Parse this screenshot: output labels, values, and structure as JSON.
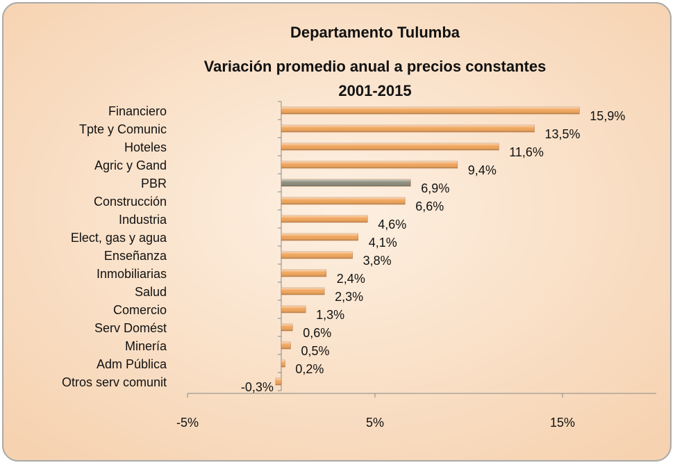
{
  "chart_data": {
    "type": "hbar",
    "title": [
      "Departamento Tulumba",
      "Variación promedio anual a precios constantes",
      "2001-2015"
    ],
    "categories": [
      "Financiero",
      "Tpte y Comunic",
      "Hoteles",
      "Agric y Gand",
      "PBR",
      "Construcción",
      "Industria",
      "Elect, gas y agua",
      "Enseñanza",
      "Inmobiliarias",
      "Salud",
      "Comercio",
      "Serv Domést",
      "Minería",
      "Adm Pública",
      "Otros serv comunit"
    ],
    "values": [
      15.9,
      13.5,
      11.6,
      9.4,
      6.9,
      6.6,
      4.6,
      4.1,
      3.8,
      2.4,
      2.3,
      1.3,
      0.6,
      0.5,
      0.2,
      -0.3
    ],
    "value_labels": [
      "15,9%",
      "13,5%",
      "11,6%",
      "9,4%",
      "6,9%",
      "6,6%",
      "4,6%",
      "4,1%",
      "3,8%",
      "2,4%",
      "2,3%",
      "1,3%",
      "0,6%",
      "0,5%",
      "0,2%",
      "-0,3%"
    ],
    "colors": [
      "#f0a45a",
      "#f0a45a",
      "#f0a45a",
      "#f0a45a",
      "#8c8c7c",
      "#f0a45a",
      "#f0a45a",
      "#f0a45a",
      "#f0a45a",
      "#f0a45a",
      "#f0a45a",
      "#f0a45a",
      "#f0a45a",
      "#f0a45a",
      "#f0a45a",
      "#f0a45a"
    ],
    "xlim": [
      -5,
      20
    ],
    "xticks": [
      {
        "value": -5,
        "label": "-5%"
      },
      {
        "value": 5,
        "label": "5%"
      },
      {
        "value": 15,
        "label": "15%"
      }
    ]
  }
}
